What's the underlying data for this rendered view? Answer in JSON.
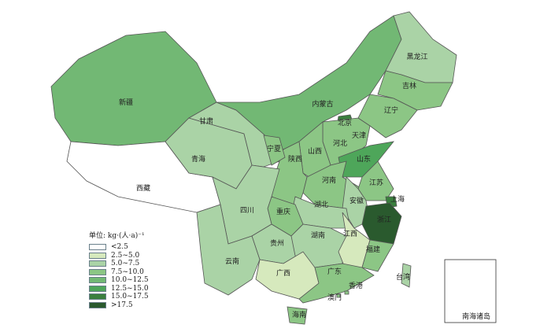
{
  "legend": {
    "title": "单位: kg·(人·a)⁻¹",
    "classes": [
      {
        "label": "<2.5",
        "color": "#ffffff"
      },
      {
        "label": "2.5~5.0",
        "color": "#d6e9bd"
      },
      {
        "label": "5.0~7.5",
        "color": "#aad3a6"
      },
      {
        "label": "7.5~10.0",
        "color": "#8cc685"
      },
      {
        "label": "10.0~12.5",
        "color": "#72b874"
      },
      {
        "label": "12.5~15.0",
        "color": "#4ea65a"
      },
      {
        "label": "15.0~17.5",
        "color": "#3a7f3e"
      },
      {
        "label": ">17.5",
        "color": "#2a5a2e"
      }
    ]
  },
  "provinces": [
    {
      "name": "新疆",
      "class": 4
    },
    {
      "name": "西藏",
      "class": 0
    },
    {
      "name": "青海",
      "class": 2
    },
    {
      "name": "甘肃",
      "class": 2
    },
    {
      "name": "内蒙古",
      "class": 4
    },
    {
      "name": "黑龙江",
      "class": 2
    },
    {
      "name": "吉林",
      "class": 3
    },
    {
      "name": "辽宁",
      "class": 3
    },
    {
      "name": "北京",
      "class": 6
    },
    {
      "name": "天津",
      "class": 4
    },
    {
      "name": "河北",
      "class": 3
    },
    {
      "name": "山西",
      "class": 3
    },
    {
      "name": "山东",
      "class": 5
    },
    {
      "name": "河南",
      "class": 3
    },
    {
      "name": "陕西",
      "class": 3
    },
    {
      "name": "宁夏",
      "class": 3
    },
    {
      "name": "江苏",
      "class": 3
    },
    {
      "name": "安徽",
      "class": 2
    },
    {
      "name": "上海",
      "class": 6
    },
    {
      "name": "浙江",
      "class": 7
    },
    {
      "name": "湖北",
      "class": 2
    },
    {
      "name": "重庆",
      "class": 3
    },
    {
      "name": "四川",
      "class": 2
    },
    {
      "name": "贵州",
      "class": 2
    },
    {
      "name": "云南",
      "class": 2
    },
    {
      "name": "湖南",
      "class": 2
    },
    {
      "name": "江西",
      "class": 1
    },
    {
      "name": "福建",
      "class": 3
    },
    {
      "name": "广西",
      "class": 1
    },
    {
      "name": "广东",
      "class": 3
    },
    {
      "name": "海南",
      "class": 3
    },
    {
      "name": "台湾",
      "class": 2
    },
    {
      "name": "香港",
      "class": 3
    },
    {
      "name": "澳门",
      "class": 3
    }
  ],
  "inset_label": "南海诸岛"
}
